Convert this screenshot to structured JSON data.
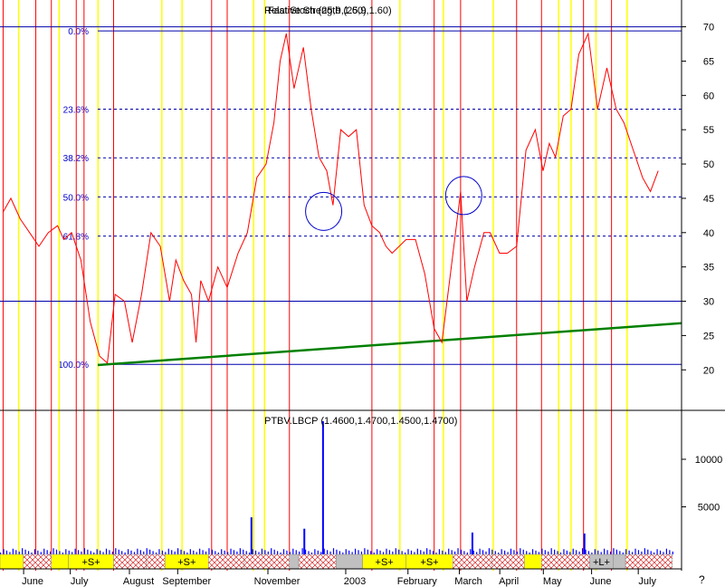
{
  "chart_data": [
    {
      "type": "line",
      "title": "Relative Strength (25,9,1.60)",
      "overlay_title": "Fast Stoch (25,9,1.60)",
      "ylim": [
        17,
        71
      ],
      "y_ticks": [
        20,
        25,
        30,
        35,
        40,
        45,
        50,
        55,
        60,
        65,
        70
      ],
      "fib_levels": [
        {
          "label": "0.0%",
          "value": 69.4
        },
        {
          "label": "23.6%",
          "value": 58.0
        },
        {
          "label": "38.2%",
          "value": 50.9
        },
        {
          "label": "50.0%",
          "value": 45.2
        },
        {
          "label": "61.8%",
          "value": 39.5
        },
        {
          "label": "100.0%",
          "value": 20.8
        }
      ],
      "horizontal_lines": [
        70,
        30
      ],
      "trendline": {
        "from": [
          0,
          20.7
        ],
        "to": [
          1,
          26.8
        ],
        "color": "#008000"
      },
      "annotations": [
        {
          "type": "circle",
          "x": "2002-12-12",
          "y": 43.1,
          "color": "#0000cc"
        },
        {
          "type": "circle",
          "x": "2003-03-12",
          "y": 45.4,
          "color": "#0000cc"
        }
      ],
      "series": [
        {
          "color": "#ff0000",
          "x": [
            "2002-05-20",
            "2002-05-25",
            "2002-05-31",
            "2002-06-06",
            "2002-06-12",
            "2002-06-18",
            "2002-06-24",
            "2002-06-28",
            "2002-07-03",
            "2002-07-09",
            "2002-07-15",
            "2002-07-21",
            "2002-07-26",
            "2002-07-31",
            "2002-08-06",
            "2002-08-11",
            "2002-08-17",
            "2002-08-23",
            "2002-08-29",
            "2002-09-04",
            "2002-09-08",
            "2002-09-13",
            "2002-09-18",
            "2002-09-21",
            "2002-09-24",
            "2002-09-29",
            "2002-10-05",
            "2002-10-11",
            "2002-10-18",
            "2002-10-24",
            "2002-10-30",
            "2002-11-05",
            "2002-11-10",
            "2002-11-14",
            "2002-11-18",
            "2002-11-23",
            "2002-11-29",
            "2002-12-04",
            "2002-12-09",
            "2002-12-14",
            "2002-12-18",
            "2002-12-23",
            "2002-12-28",
            "2003-01-02",
            "2003-01-07",
            "2003-01-12",
            "2003-01-17",
            "2003-01-21",
            "2003-01-25",
            "2003-02-03",
            "2003-02-09",
            "2003-02-15",
            "2003-02-21",
            "2003-02-26",
            "2003-03-04",
            "2003-03-10",
            "2003-03-14",
            "2003-03-19",
            "2003-03-25",
            "2003-03-29",
            "2003-04-04",
            "2003-04-09",
            "2003-04-15",
            "2003-04-21",
            "2003-04-27",
            "2003-05-02",
            "2003-05-06",
            "2003-05-10",
            "2003-05-15",
            "2003-05-20",
            "2003-05-25",
            "2003-05-31",
            "2003-06-06",
            "2003-06-12",
            "2003-06-18",
            "2003-06-23",
            "2003-06-29",
            "2003-07-05",
            "2003-07-10",
            "2003-07-15"
          ],
          "values": [
            43,
            45,
            42,
            40,
            38,
            40,
            41,
            39,
            40,
            36,
            27,
            22,
            21,
            31,
            30,
            24,
            31,
            40,
            38,
            30,
            36,
            33,
            31,
            24,
            33,
            30,
            35,
            32,
            37,
            40,
            48,
            50,
            56,
            65,
            69,
            61,
            67,
            58,
            51,
            49,
            44,
            55,
            54,
            55,
            44,
            41,
            40,
            38,
            37,
            39,
            39,
            34,
            26,
            24,
            35,
            46,
            30,
            35,
            40,
            40,
            37,
            37,
            38,
            52,
            55,
            49,
            53,
            51,
            57,
            58,
            66,
            69,
            58,
            64,
            58,
            56,
            52,
            48,
            46,
            49
          ]
        }
      ],
      "x_labels": [
        "June",
        "July",
        "August",
        "September",
        "November",
        "2003",
        "February",
        "March",
        "April",
        "May",
        "June",
        "July"
      ],
      "x_label_dates": [
        "2002-06-08",
        "2002-07-08",
        "2002-08-15",
        "2002-09-15",
        "2002-11-12",
        "2003-01-01",
        "2003-02-10",
        "2003-03-15",
        "2003-04-10",
        "2003-05-08",
        "2003-06-08",
        "2003-07-08"
      ]
    },
    {
      "type": "bar",
      "title": "PTBV.LBCP (1.4600,1.4700,1.4500,1.4700)",
      "ylim": [
        0,
        14000
      ],
      "y_ticks": [
        5000,
        10000
      ],
      "bar_color": "#0000ff",
      "x_start": "2002-05-18",
      "x_end": "2003-07-24",
      "spikes": [
        {
          "x": "2002-10-26",
          "value": 3900
        },
        {
          "x": "2002-11-29",
          "value": 2700
        },
        {
          "x": "2002-12-11",
          "value": 14000
        },
        {
          "x": "2003-03-17",
          "value": 2300
        },
        {
          "x": "2003-05-28",
          "value": 2200
        }
      ],
      "base_volume": 500,
      "signal_strip": [
        {
          "from": "2002-05-18",
          "to": "2002-06-02",
          "kind": "yellow"
        },
        {
          "from": "2002-06-02",
          "to": "2002-06-20",
          "kind": "hatch"
        },
        {
          "from": "2002-06-20",
          "to": "2002-07-01",
          "kind": "yellow"
        },
        {
          "from": "2002-07-01",
          "to": "2002-07-30",
          "kind": "yellow",
          "label": "+S+"
        },
        {
          "from": "2002-07-30",
          "to": "2002-08-20",
          "kind": "hatch"
        },
        {
          "from": "2002-08-20",
          "to": "2002-09-01",
          "kind": "hatch"
        },
        {
          "from": "2002-09-01",
          "to": "2002-09-29",
          "kind": "yellow",
          "label": "+S+"
        },
        {
          "from": "2002-09-29",
          "to": "2002-10-22",
          "kind": "hatch"
        },
        {
          "from": "2002-10-22",
          "to": "2002-11-20",
          "kind": "hatch"
        },
        {
          "from": "2002-11-20",
          "to": "2002-11-26",
          "kind": "gray"
        },
        {
          "from": "2002-11-26",
          "to": "2002-12-20",
          "kind": "hatch"
        },
        {
          "from": "2002-12-20",
          "to": "2003-01-06",
          "kind": "gray"
        },
        {
          "from": "2003-01-06",
          "to": "2003-02-03",
          "kind": "yellow",
          "label": "+S+"
        },
        {
          "from": "2003-02-03",
          "to": "2003-03-05",
          "kind": "yellow",
          "label": "+S+"
        },
        {
          "from": "2003-03-05",
          "to": "2003-03-30",
          "kind": "hatch"
        },
        {
          "from": "2003-03-30",
          "to": "2003-04-20",
          "kind": "hatch"
        },
        {
          "from": "2003-04-20",
          "to": "2003-05-01",
          "kind": "yellow"
        },
        {
          "from": "2003-05-01",
          "to": "2003-06-01",
          "kind": "hatch"
        },
        {
          "from": "2003-06-01",
          "to": "2003-06-16",
          "kind": "gray",
          "label": "+L+"
        },
        {
          "from": "2003-06-16",
          "to": "2003-06-24",
          "kind": "gray"
        },
        {
          "from": "2003-06-24",
          "to": "2003-07-24",
          "kind": "hatch"
        }
      ]
    }
  ],
  "vertical_markers": {
    "red": [
      "2002-05-20",
      "2002-06-10",
      "2002-06-20",
      "2002-07-06",
      "2002-07-11",
      "2002-07-30",
      "2002-10-01",
      "2002-10-11",
      "2002-11-20",
      "2003-01-12",
      "2003-02-21",
      "2003-03-10",
      "2003-04-15",
      "2003-05-01",
      "2003-05-28",
      "2003-06-15"
    ],
    "yellow": [
      "2002-05-30",
      "2002-06-25",
      "2002-07-20",
      "2002-08-30",
      "2002-09-12",
      "2002-10-28",
      "2002-11-04",
      "2003-01-30",
      "2003-02-27",
      "2003-03-31",
      "2003-05-12",
      "2003-05-20",
      "2003-06-05",
      "2003-06-25"
    ]
  },
  "footer_mark": "?"
}
